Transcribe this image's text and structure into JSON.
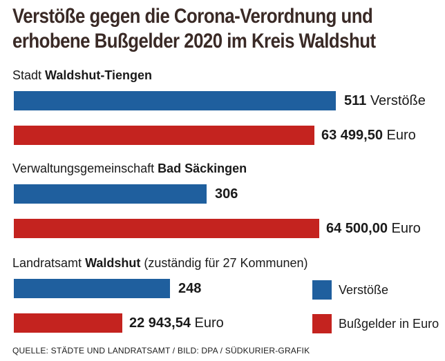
{
  "title_line1": "Verstöße gegen die Corona-Verordnung und",
  "title_line2": "erhobene Bußgelder 2020 im Kreis Waldshut",
  "colors": {
    "violations": "#1f5f9e",
    "fines": "#c4231f"
  },
  "legend": {
    "violations": "Verstöße",
    "fines": "Bußgelder in Euro"
  },
  "chart_data": {
    "type": "bar",
    "orientation": "horizontal",
    "title": "Verstöße gegen die Corona-Verordnung und erhobene Bußgelder 2020 im Kreis Waldshut",
    "groups": [
      {
        "label_prefix": "Stadt ",
        "label_bold": "Waldshut-Tiengen",
        "label_suffix": "",
        "violations": 511,
        "violations_label": "511",
        "violations_unit": " Verstöße",
        "fines": 63499.5,
        "fines_label": "63 499,50",
        "fines_unit": " Euro"
      },
      {
        "label_prefix": "Verwaltungsgemeinschaft ",
        "label_bold": "Bad Säckingen",
        "label_suffix": "",
        "violations": 306,
        "violations_label": "306",
        "violations_unit": "",
        "fines": 64500.0,
        "fines_label": "64 500,00",
        "fines_unit": " Euro"
      },
      {
        "label_prefix": "Landratsamt ",
        "label_bold": "Waldshut",
        "label_suffix": " (zuständig für 27 Kommunen)",
        "violations": 248,
        "violations_label": "248",
        "violations_unit": "",
        "fines": 22943.54,
        "fines_label": "22 943,54",
        "fines_unit": " Euro"
      }
    ],
    "series": [
      {
        "name": "Verstöße",
        "key": "violations"
      },
      {
        "name": "Bußgelder in Euro",
        "key": "fines"
      }
    ],
    "legend_position": "bottom-right"
  },
  "source": "QUELLE: STÄDTE UND LANDRATSAMT / BILD: DPA / SÜDKURIER-GRAFIK"
}
